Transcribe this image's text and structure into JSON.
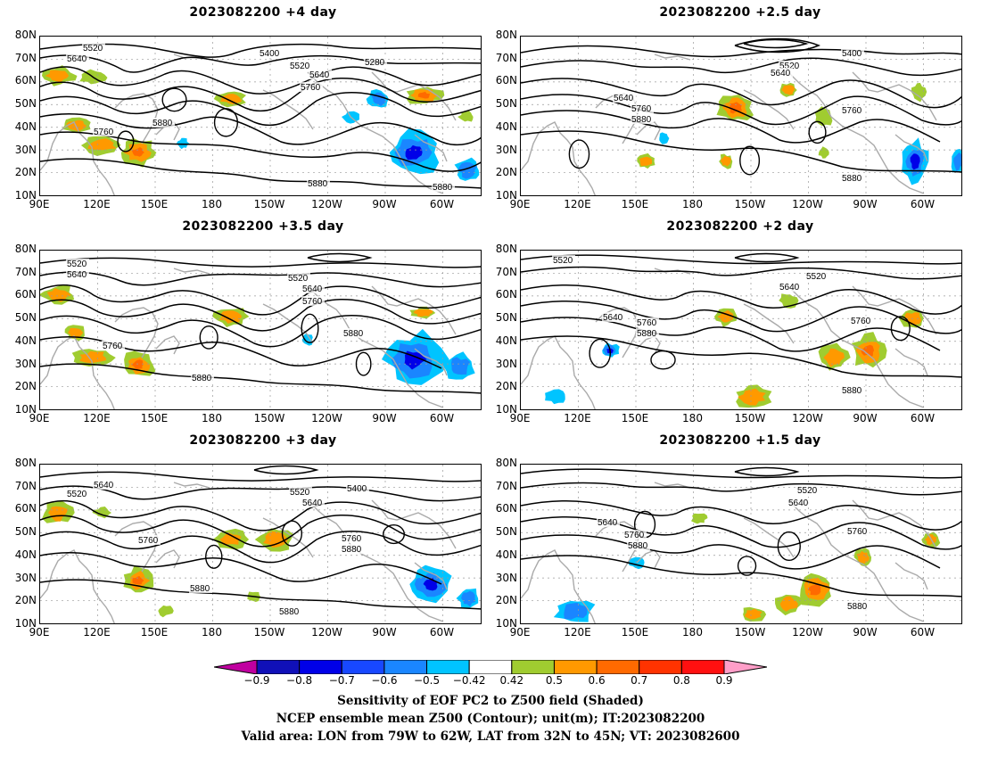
{
  "panels": [
    {
      "title": "2023082200  +4  day",
      "contour_labels": [
        "5520",
        "5640",
        "5400",
        "5280",
        "5520",
        "5640",
        "5760",
        "5760",
        "5880",
        "5880",
        "5880"
      ]
    },
    {
      "title": "2023082200  +2.5  day",
      "contour_labels": [
        "5400",
        "5520",
        "5640",
        "5640",
        "5760",
        "5880",
        "5760",
        "5880"
      ]
    },
    {
      "title": "2023082200  +3.5  day",
      "contour_labels": [
        "5520",
        "5640",
        "5520",
        "5640",
        "5760",
        "5760",
        "5880",
        "5880"
      ]
    },
    {
      "title": "2023082200  +2  day",
      "contour_labels": [
        "5520",
        "5520",
        "5640",
        "5640",
        "5760",
        "5880",
        "5760",
        "5880"
      ]
    },
    {
      "title": "2023082200  +3  day",
      "contour_labels": [
        "5520",
        "5640",
        "5400",
        "5520",
        "5640",
        "5760",
        "5760",
        "5880",
        "5880",
        "5880"
      ]
    },
    {
      "title": "2023082200  +1.5  day",
      "contour_labels": [
        "5520",
        "5640",
        "5640",
        "5760",
        "5880",
        "5760",
        "5880"
      ]
    }
  ],
  "left_lat_labels": [
    "80N",
    "70N",
    "60N",
    "50N",
    "40N",
    "30N",
    "20N",
    "10N"
  ],
  "lon_labels": [
    "90E",
    "120E",
    "150E",
    "180",
    "150W",
    "120W",
    "90W",
    "60W"
  ],
  "colorbar": {
    "values": [
      "−0.9",
      "−0.8",
      "−0.7",
      "−0.6",
      "−0.5",
      "−0.42",
      "0.42",
      "0.5",
      "0.6",
      "0.7",
      "0.8",
      "0.9"
    ],
    "colors": [
      "#c000a0",
      "#1010b8",
      "#0000e8",
      "#1848ff",
      "#1a86ff",
      "#00c4ff",
      "#ffffff",
      "#a0cc30",
      "#ff9900",
      "#ff6a00",
      "#ff3300",
      "#ff1010",
      "#ff9ec8"
    ]
  },
  "captions": [
    "Sensitivity of EOF PC2 to Z500 field (Shaded)",
    "NCEP ensemble mean Z500 (Contour); unit(m); IT:2023082200",
    "Valid area: LON from 79W to 62W, LAT from 32N to 45N; VT: 2023082600"
  ]
}
